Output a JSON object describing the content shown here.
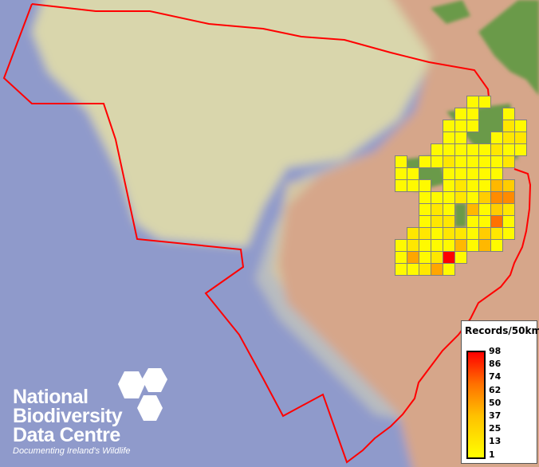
{
  "map": {
    "type": "choropleth grid",
    "colors": {
      "boundary": "#ff0000",
      "grid_line": "#808080",
      "sea": "#8f9acb",
      "shelf": "#d9d6ac",
      "land": "#d6a68a",
      "vegetation": "#6a9a48"
    },
    "grid_values": [
      [
        null,
        null,
        null,
        null,
        null,
        null,
        3,
        3,
        null,
        null,
        null
      ],
      [
        null,
        null,
        null,
        null,
        null,
        3,
        3,
        null,
        null,
        3,
        null
      ],
      [
        null,
        null,
        null,
        null,
        3,
        3,
        3,
        null,
        null,
        10,
        3
      ],
      [
        null,
        null,
        null,
        null,
        3,
        3,
        null,
        null,
        3,
        10,
        10
      ],
      [
        null,
        null,
        null,
        3,
        3,
        3,
        3,
        3,
        10,
        3,
        3
      ],
      [
        3,
        null,
        3,
        3,
        10,
        3,
        3,
        3,
        3,
        10,
        null
      ],
      [
        3,
        3,
        null,
        null,
        3,
        3,
        3,
        3,
        3,
        null,
        null
      ],
      [
        3,
        3,
        3,
        null,
        3,
        10,
        3,
        3,
        28,
        20,
        null
      ],
      [
        null,
        null,
        3,
        3,
        3,
        10,
        3,
        20,
        45,
        45,
        null
      ],
      [
        null,
        null,
        3,
        10,
        3,
        null,
        28,
        3,
        20,
        10,
        null
      ],
      [
        null,
        null,
        3,
        10,
        10,
        null,
        3,
        3,
        55,
        3,
        null
      ],
      [
        null,
        10,
        10,
        3,
        10,
        10,
        3,
        20,
        10,
        3,
        null
      ],
      [
        3,
        10,
        3,
        3,
        3,
        28,
        3,
        28,
        3,
        null,
        null
      ],
      [
        3,
        35,
        3,
        10,
        98,
        3,
        null,
        null,
        null,
        null,
        null
      ],
      [
        3,
        3,
        10,
        35,
        3,
        null,
        null,
        null,
        null,
        null,
        null
      ]
    ]
  },
  "legend": {
    "title": "Records/50km",
    "ticks": [
      "98",
      "86",
      "74",
      "62",
      "50",
      "37",
      "25",
      "13",
      "1"
    ],
    "min": 1,
    "max": 98,
    "color_low": "#ffff00",
    "color_high": "#ff0000"
  },
  "logo": {
    "name_lines": [
      "National",
      "Biodiversity",
      "Data Centre"
    ],
    "tagline": "Documenting Ireland's Wildlife"
  }
}
